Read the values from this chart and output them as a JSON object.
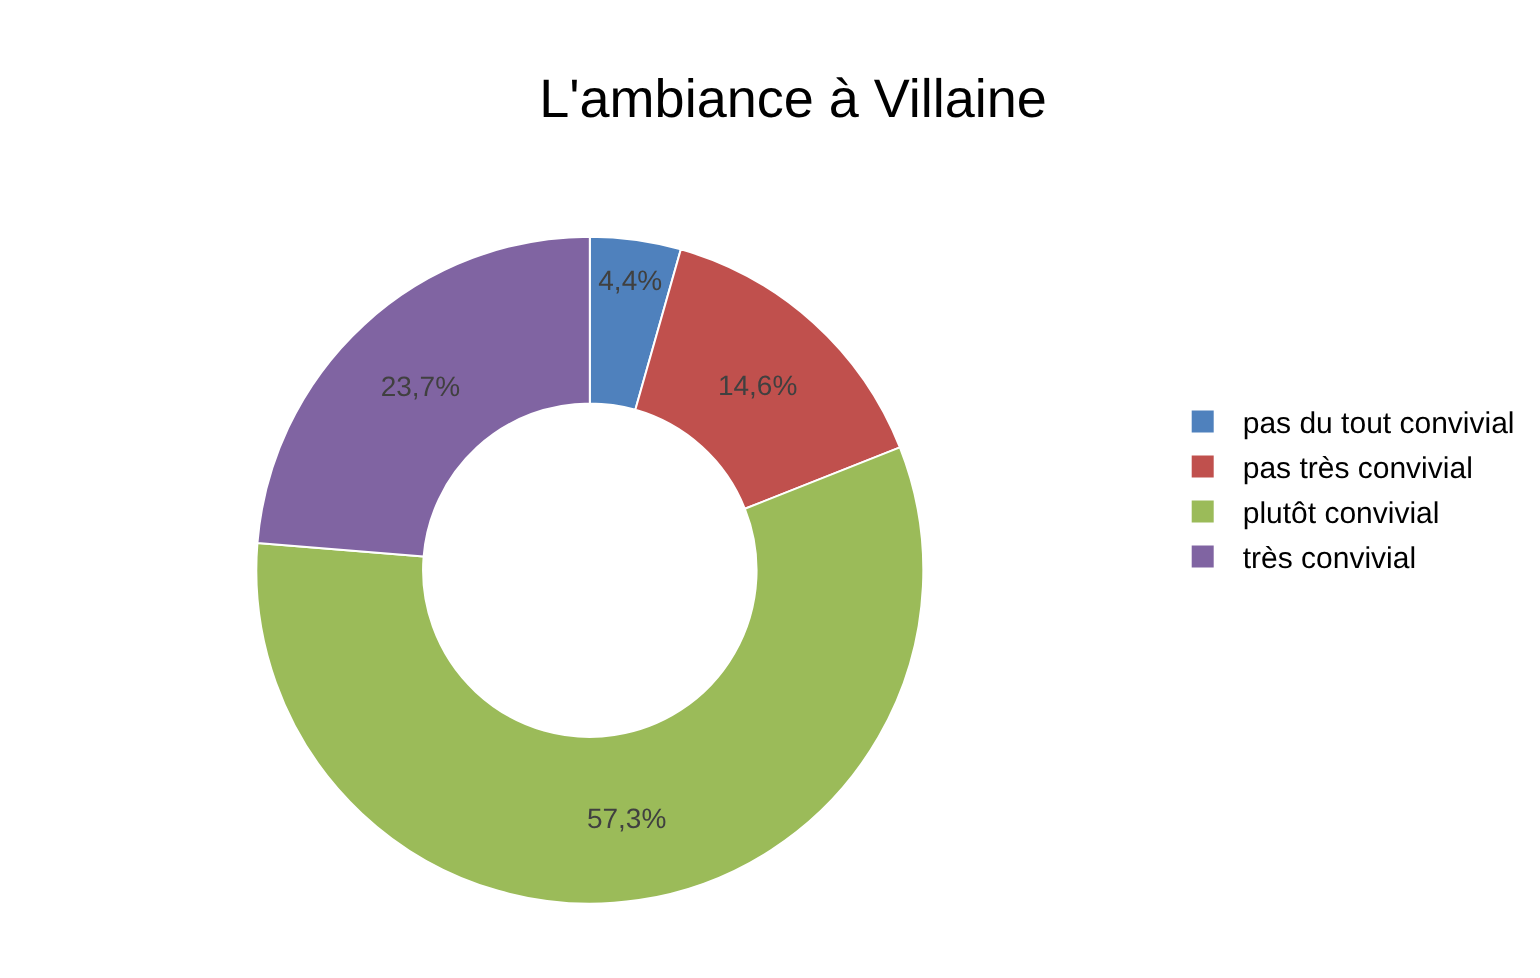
{
  "chart_data": {
    "type": "donut",
    "title": "L'ambiance à Villaine",
    "categories": [
      "pas du tout convivial",
      "pas très convivial",
      "plutôt convivial",
      "très convivial"
    ],
    "values": [
      4.4,
      14.6,
      57.3,
      23.7
    ],
    "colors": [
      "#4f81bd",
      "#c0504d",
      "#9bbb59",
      "#8064a2"
    ],
    "value_labels": [
      "4,4%",
      "14,6%",
      "57,3%",
      "23,7%"
    ],
    "legend": "right"
  }
}
